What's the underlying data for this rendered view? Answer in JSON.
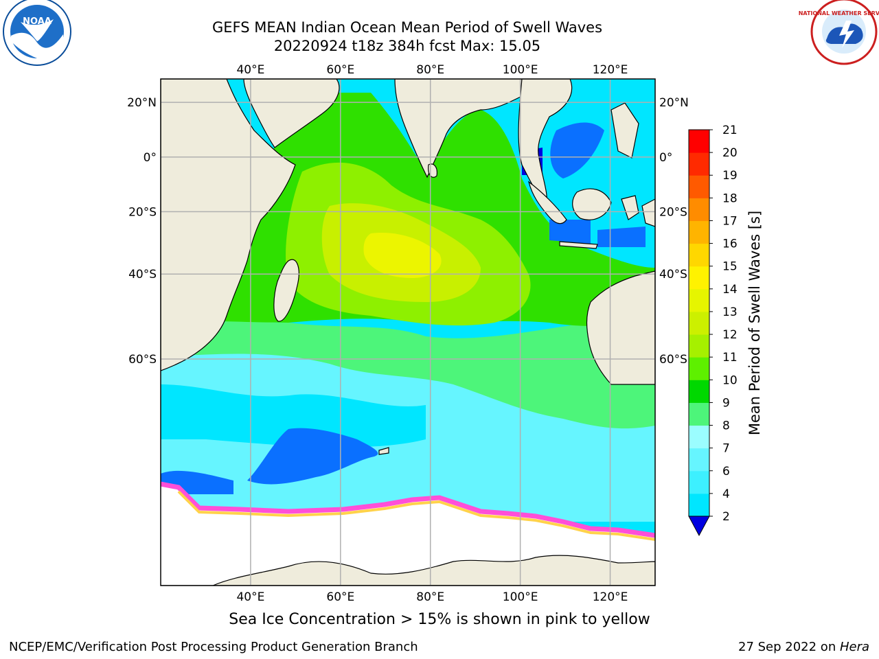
{
  "header": {
    "title_line1": "GEFS MEAN Indian Ocean Mean Period of Swell Waves",
    "title_line2": "20220924 t18z 384h fcst   Max: 15.05"
  },
  "logos": {
    "left": "noaa-logo",
    "right": "national-weather-service-logo",
    "left_text": "NOAA",
    "right_text": "NATIONAL WEATHER SERVICE"
  },
  "map": {
    "lon_ticks": [
      "40°E",
      "60°E",
      "80°E",
      "100°E",
      "120°E"
    ],
    "lat_ticks": [
      "20°N",
      "0°",
      "20°S",
      "40°S",
      "60°S"
    ],
    "lon_values": [
      40,
      60,
      80,
      100,
      120
    ],
    "lat_values": [
      20,
      0,
      -20,
      -40,
      -60
    ],
    "lon_range": [
      20,
      130
    ],
    "lat_range": [
      -83,
      28
    ],
    "grid": true,
    "colors": {
      "land": "#efecdc",
      "sea_ice": "#ffffff",
      "ice_edge_pink": "#ff4fd8",
      "ice_edge_yellow": "#ffd24a"
    }
  },
  "colorbar": {
    "label": "Mean Period of Swell Waves [s]",
    "ticks": [
      "2",
      "4",
      "6",
      "7",
      "8",
      "9",
      "10",
      "11",
      "12",
      "13",
      "14",
      "15",
      "16",
      "17",
      "18",
      "19",
      "20",
      "21"
    ],
    "bins": [
      2,
      4,
      6,
      7,
      8,
      9,
      10,
      11,
      12,
      13,
      14,
      15,
      16,
      17,
      18,
      19,
      20,
      21
    ],
    "colors": [
      "#0a70ff",
      "#00e6ff",
      "#3df0ff",
      "#66f5ff",
      "#9bfdff",
      "#4df57a",
      "#00d800",
      "#5ef000",
      "#a6f000",
      "#ccf000",
      "#e6f500",
      "#fff200",
      "#ffd700",
      "#ffb400",
      "#ff8c00",
      "#ff5a00",
      "#ff2a00",
      "#ff0000"
    ],
    "extend_color": "#0000e0"
  },
  "field_colors": {
    "deep_blue": "#0000e0",
    "blue": "#0a70ff",
    "cyan": "#00e6ff",
    "light_cyan": "#66f5ff",
    "pale_cyan": "#9bfdff",
    "light_green": "#4df57a",
    "green": "#2fe000",
    "lime": "#8ef000",
    "yellow_green": "#c8f000",
    "yellow": "#ecf500"
  },
  "notes": {
    "ice": "Sea Ice Concentration > 15% is shown in pink to yellow",
    "footer_left": "NCEP/EMC/Verification Post Processing Product Generation Branch",
    "footer_right_prefix": "27 Sep 2022 on ",
    "footer_right_machine": "Hera"
  }
}
